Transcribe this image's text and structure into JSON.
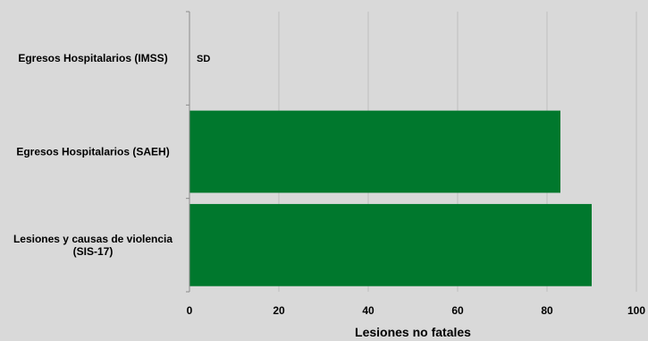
{
  "chart_data": {
    "type": "bar",
    "orientation": "horizontal",
    "categories": [
      [
        "Egresos Hospitalarios (IMSS)"
      ],
      [
        "Egresos Hospitalarios (SAEH)"
      ],
      [
        "Lesiones y causas de violencia",
        "(SIS-17)"
      ]
    ],
    "values": [
      null,
      83,
      90
    ],
    "annotations": [
      "SD",
      "",
      ""
    ],
    "xlabel": "Lesiones no fatales",
    "xlim": [
      0,
      100
    ],
    "xticks": [
      0,
      20,
      40,
      60,
      80,
      100
    ],
    "grid": true,
    "bar_color": "#00782d",
    "background_color": "#d9d9d9",
    "grid_color": "#bfbfbf"
  }
}
